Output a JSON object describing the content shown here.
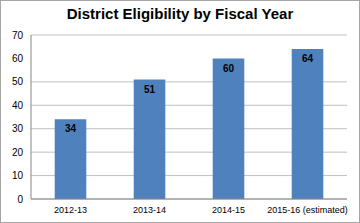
{
  "chart_data": {
    "type": "bar",
    "title": "District Eligibility by Fiscal Year",
    "categories": [
      "2012-13",
      "2013-14",
      "2014-15",
      "2015-16 (estimated)"
    ],
    "values": [
      34,
      51,
      60,
      64
    ],
    "color": "#4f81bd",
    "ylim": [
      0,
      70
    ],
    "yticks": [
      0,
      10,
      20,
      30,
      40,
      50,
      60,
      70
    ],
    "grid": true,
    "data_labels": true
  }
}
